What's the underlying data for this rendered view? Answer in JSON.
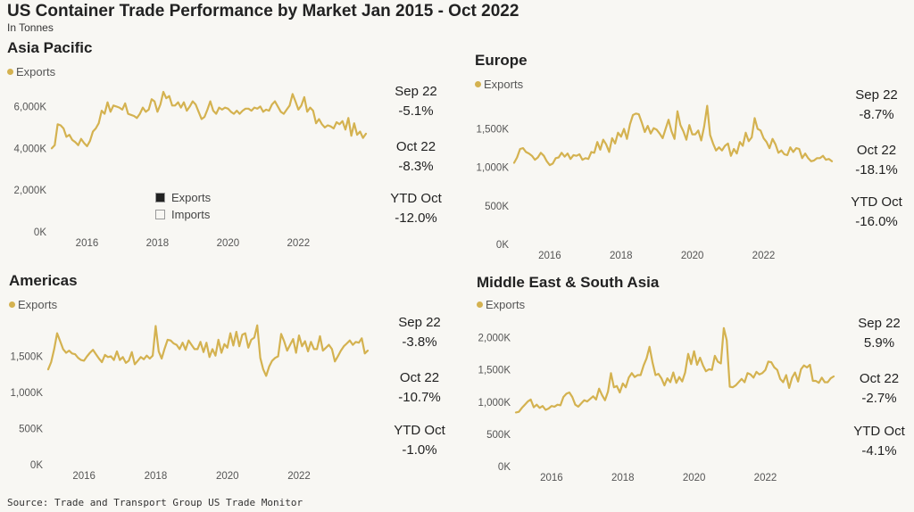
{
  "header": {
    "title": "US Container Trade Performance by Market Jan 2015 - Oct 2022",
    "subtitle": "In Tonnes",
    "source": "Source: Trade and Transport Group US Trade Monitor"
  },
  "colors": {
    "exports": "#d4b250",
    "axis_text": "#555555",
    "grid": "#e6e4dc"
  },
  "inset_legend": [
    {
      "label": "Exports",
      "swatch": "#222222"
    },
    {
      "label": "Imports",
      "swatch": "#f8f7f3"
    }
  ],
  "panels": [
    {
      "title": "Asia Pacific",
      "legend": "Exports",
      "stats": [
        {
          "period": "Sep 22",
          "value": "-5.1%"
        },
        {
          "period": "Oct 22",
          "value": "-8.3%"
        },
        {
          "period": "YTD Oct",
          "value": "-12.0%"
        }
      ]
    },
    {
      "title": "Europe",
      "legend": "Exports",
      "stats": [
        {
          "period": "Sep 22",
          "value": "-8.7%"
        },
        {
          "period": "Oct 22",
          "value": "-18.1%"
        },
        {
          "period": "YTD Oct",
          "value": "-16.0%"
        }
      ]
    },
    {
      "title": "Americas",
      "legend": "Exports",
      "stats": [
        {
          "period": "Sep 22",
          "value": "-3.8%"
        },
        {
          "period": "Oct 22",
          "value": "-10.7%"
        },
        {
          "period": "YTD Oct",
          "value": "-1.0%"
        }
      ]
    },
    {
      "title": "Middle East & South Asia",
      "legend": "Exports",
      "stats": [
        {
          "period": "Sep 22",
          "value": "5.9%"
        },
        {
          "period": "Oct 22",
          "value": "-2.7%"
        },
        {
          "period": "YTD Oct",
          "value": "-4.1%"
        }
      ]
    }
  ],
  "chart_data": [
    {
      "type": "line",
      "title": "Asia Pacific",
      "series": [
        {
          "name": "Exports",
          "color": "#d4b250",
          "values": [
            4000,
            4150,
            5150,
            5100,
            4950,
            4550,
            4650,
            4400,
            4300,
            4150,
            4450,
            4250,
            4100,
            4350,
            4800,
            4950,
            5200,
            5800,
            5650,
            6200,
            5750,
            6050,
            6000,
            5950,
            5850,
            6150,
            5650,
            5600,
            5550,
            5450,
            5650,
            5950,
            5750,
            5850,
            6350,
            6250,
            5750,
            6100,
            6700,
            6400,
            6500,
            6050,
            6050,
            6200,
            5950,
            6200,
            5800,
            6000,
            6250,
            6100,
            5750,
            5400,
            5500,
            5850,
            6250,
            5800,
            5650,
            5950,
            5850,
            5950,
            5900,
            5750,
            5650,
            5800,
            5650,
            5800,
            5900,
            5900,
            5800,
            5950,
            5900,
            6000,
            5750,
            5850,
            5800,
            6100,
            6250,
            6000,
            5750,
            5650,
            5850,
            6050,
            6600,
            6250,
            5850,
            6050,
            6450,
            5750,
            5950,
            5800,
            5200,
            5400,
            5150,
            5000,
            5100,
            5050,
            4950,
            5250,
            5150,
            5300,
            4900,
            5450,
            4600,
            5200,
            4650,
            4800,
            4500,
            4700
          ]
        }
      ],
      "x": {
        "start": "Jan 2015",
        "end": "Oct 2022",
        "ticks": [
          "2016",
          "2018",
          "2020",
          "2022"
        ]
      },
      "y": {
        "ticks": [
          "0K",
          "2,000K",
          "4,000K",
          "6,000K"
        ],
        "tick_values": [
          0,
          2000,
          4000,
          6000
        ],
        "ylim": [
          0,
          7000
        ]
      }
    },
    {
      "type": "line",
      "title": "Europe",
      "series": [
        {
          "name": "Exports",
          "color": "#d4b250",
          "values": [
            1060,
            1130,
            1240,
            1250,
            1200,
            1180,
            1150,
            1100,
            1130,
            1190,
            1150,
            1080,
            1030,
            1050,
            1120,
            1130,
            1190,
            1140,
            1180,
            1110,
            1160,
            1150,
            1170,
            1100,
            1120,
            1110,
            1200,
            1190,
            1330,
            1230,
            1360,
            1300,
            1200,
            1380,
            1310,
            1450,
            1400,
            1500,
            1370,
            1560,
            1680,
            1700,
            1690,
            1580,
            1460,
            1540,
            1440,
            1510,
            1490,
            1440,
            1380,
            1500,
            1620,
            1470,
            1370,
            1730,
            1550,
            1470,
            1360,
            1550,
            1430,
            1430,
            1480,
            1350,
            1530,
            1800,
            1420,
            1310,
            1220,
            1260,
            1220,
            1280,
            1310,
            1150,
            1240,
            1180,
            1330,
            1280,
            1450,
            1340,
            1390,
            1640,
            1500,
            1480,
            1380,
            1330,
            1250,
            1370,
            1300,
            1190,
            1220,
            1170,
            1160,
            1260,
            1200,
            1250,
            1240,
            1120,
            1180,
            1120,
            1080,
            1090,
            1120,
            1120,
            1150,
            1100,
            1110,
            1080
          ]
        }
      ],
      "x": {
        "start": "Jan 2015",
        "end": "Oct 2022",
        "ticks": [
          "2016",
          "2018",
          "2020",
          "2022"
        ]
      },
      "y": {
        "ticks": [
          "0K",
          "500K",
          "1,000K",
          "1,500K"
        ],
        "tick_values": [
          0,
          500,
          1000,
          1500
        ],
        "ylim": [
          0,
          1900
        ]
      }
    },
    {
      "type": "line",
      "title": "Americas",
      "series": [
        {
          "name": "Exports",
          "color": "#d4b250",
          "values": [
            1320,
            1420,
            1600,
            1820,
            1710,
            1600,
            1550,
            1580,
            1540,
            1530,
            1480,
            1450,
            1440,
            1500,
            1550,
            1590,
            1530,
            1470,
            1420,
            1520,
            1490,
            1500,
            1450,
            1570,
            1450,
            1490,
            1410,
            1440,
            1560,
            1390,
            1440,
            1490,
            1460,
            1510,
            1470,
            1510,
            1920,
            1570,
            1470,
            1610,
            1730,
            1720,
            1680,
            1660,
            1600,
            1690,
            1590,
            1720,
            1660,
            1600,
            1600,
            1700,
            1560,
            1690,
            1490,
            1600,
            1510,
            1730,
            1550,
            1670,
            1620,
            1820,
            1650,
            1840,
            1640,
            1800,
            1820,
            1620,
            1730,
            1760,
            1930,
            1480,
            1320,
            1230,
            1360,
            1440,
            1480,
            1500,
            1810,
            1710,
            1580,
            1660,
            1740,
            1550,
            1790,
            1640,
            1710,
            1570,
            1700,
            1600,
            1600,
            1780,
            1580,
            1620,
            1660,
            1600,
            1430,
            1500,
            1580,
            1640,
            1680,
            1720,
            1660,
            1700,
            1690,
            1750,
            1540,
            1580
          ]
        }
      ],
      "x": {
        "start": "Jan 2015",
        "end": "Oct 2022",
        "ticks": [
          "2016",
          "2018",
          "2020",
          "2022"
        ]
      },
      "y": {
        "ticks": [
          "0K",
          "500K",
          "1,000K",
          "1,500K"
        ],
        "tick_values": [
          0,
          500,
          1000,
          1500
        ],
        "ylim": [
          0,
          2050
        ]
      }
    },
    {
      "type": "line",
      "title": "Middle East & South Asia",
      "series": [
        {
          "name": "Exports",
          "color": "#d4b250",
          "values": [
            840,
            850,
            910,
            960,
            1010,
            1040,
            920,
            960,
            910,
            940,
            880,
            900,
            940,
            930,
            960,
            950,
            1080,
            1130,
            1150,
            1080,
            960,
            930,
            980,
            1030,
            1010,
            1050,
            1090,
            1040,
            1210,
            1110,
            1030,
            1160,
            1450,
            1230,
            1250,
            1150,
            1290,
            1230,
            1380,
            1450,
            1390,
            1420,
            1420,
            1570,
            1680,
            1860,
            1620,
            1420,
            1440,
            1370,
            1260,
            1370,
            1310,
            1460,
            1300,
            1390,
            1320,
            1460,
            1750,
            1590,
            1790,
            1580,
            1690,
            1570,
            1480,
            1510,
            1500,
            1720,
            1630,
            1600,
            2150,
            1960,
            1240,
            1230,
            1260,
            1310,
            1360,
            1310,
            1450,
            1430,
            1380,
            1470,
            1430,
            1450,
            1500,
            1630,
            1620,
            1540,
            1500,
            1360,
            1310,
            1420,
            1220,
            1380,
            1460,
            1320,
            1510,
            1570,
            1540,
            1580,
            1330,
            1330,
            1300,
            1380,
            1310,
            1310,
            1370,
            1400
          ]
        }
      ],
      "x": {
        "start": "Jan 2015",
        "end": "Oct 2022",
        "ticks": [
          "2016",
          "2018",
          "2020",
          "2022"
        ]
      },
      "y": {
        "ticks": [
          "0K",
          "500K",
          "1,000K",
          "1,500K",
          "2,000K"
        ],
        "tick_values": [
          0,
          500,
          1000,
          1500,
          2000
        ],
        "ylim": [
          0,
          2300
        ]
      }
    }
  ]
}
